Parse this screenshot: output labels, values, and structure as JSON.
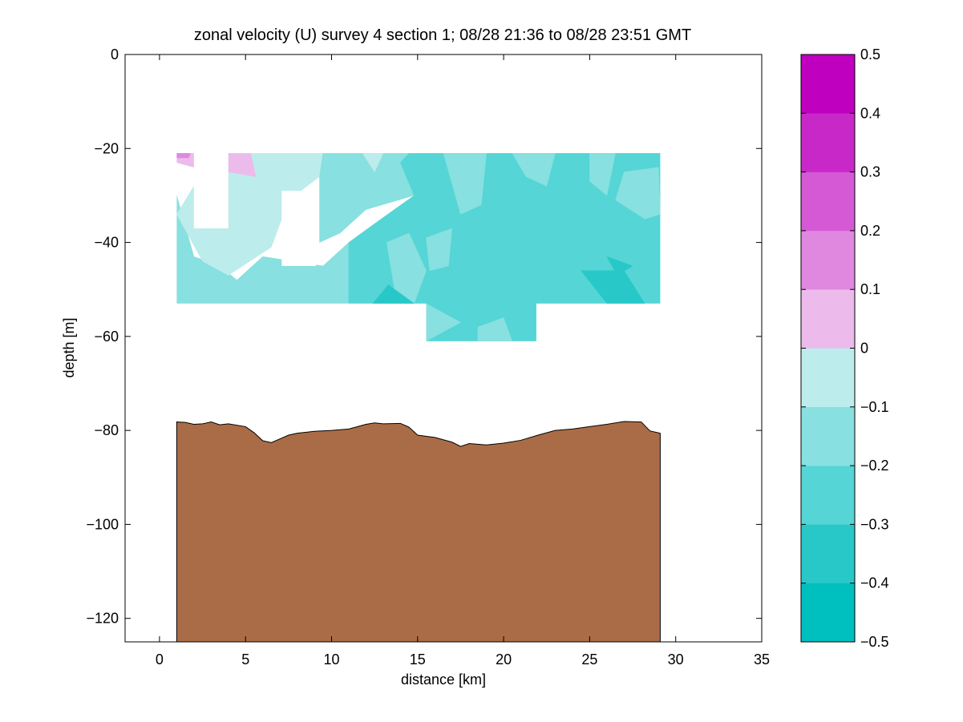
{
  "chart_data": {
    "type": "heatmap",
    "title": "zonal velocity (U) survey 4 section 1; 08/28 21:36 to 08/28 23:51 GMT",
    "xlabel": "distance [km]",
    "ylabel": "depth [m]",
    "xlim": [
      -2,
      35
    ],
    "ylim": [
      -125,
      0
    ],
    "xticks": [
      0,
      5,
      10,
      15,
      20,
      25,
      30,
      35
    ],
    "yticks": [
      0,
      -20,
      -40,
      -60,
      -80,
      -100,
      -120
    ],
    "grid": false,
    "colorbar": {
      "range": [
        -0.5,
        0.5
      ],
      "ticks": [
        0.5,
        0.4,
        0.3,
        0.2,
        0.1,
        0,
        -0.1,
        -0.2,
        -0.3,
        -0.4,
        -0.5
      ],
      "bins": [
        {
          "from": -0.5,
          "to": -0.4,
          "color": "#00bfbf"
        },
        {
          "from": -0.4,
          "to": -0.3,
          "color": "#28c8c8"
        },
        {
          "from": -0.3,
          "to": -0.2,
          "color": "#55d5d5"
        },
        {
          "from": -0.2,
          "to": -0.1,
          "color": "#88e0e0"
        },
        {
          "from": -0.1,
          "to": 0.0,
          "color": "#bdecec"
        },
        {
          "from": 0.0,
          "to": 0.1,
          "color": "#ecbbec"
        },
        {
          "from": 0.1,
          "to": 0.2,
          "color": "#e088e0"
        },
        {
          "from": 0.2,
          "to": 0.3,
          "color": "#d559d5"
        },
        {
          "from": 0.3,
          "to": 0.4,
          "color": "#c828c8"
        },
        {
          "from": 0.4,
          "to": 0.5,
          "color": "#bf00bf"
        }
      ]
    },
    "data_region": {
      "x_range": [
        1.0,
        29.1
      ],
      "depth_range": [
        -21,
        -53
      ],
      "deep_segment": {
        "x_range": [
          15.5,
          21.9
        ],
        "depth_bottom": -61
      }
    },
    "data_gaps": [
      {
        "x_range": [
          2.0,
          4.0
        ],
        "depth_range": [
          -21,
          -37
        ]
      },
      {
        "x_range": [
          7.1,
          9.1
        ],
        "depth_range": [
          -29,
          -45
        ]
      }
    ],
    "velocity_regions": [
      {
        "level": -0.15,
        "points": [
          [
            1.0,
            -30
          ],
          [
            1.0,
            -53
          ],
          [
            8.0,
            -53
          ],
          [
            11.0,
            -53
          ],
          [
            11.0,
            -40
          ],
          [
            9.5,
            -45
          ],
          [
            6.0,
            -43
          ],
          [
            4.5,
            -48
          ],
          [
            3.5,
            -45
          ],
          [
            2.0,
            -43
          ]
        ]
      },
      {
        "level": -0.05,
        "points": [
          [
            1.0,
            -34
          ],
          [
            2.0,
            -28
          ],
          [
            4.0,
            -21
          ],
          [
            9.5,
            -21
          ],
          [
            9.3,
            -26
          ],
          [
            7.5,
            -31
          ],
          [
            6.5,
            -41
          ],
          [
            4.0,
            -47
          ],
          [
            2.5,
            -44
          ],
          [
            1.3,
            -36
          ]
        ]
      },
      {
        "level": 0.05,
        "points": [
          [
            1.0,
            -21
          ],
          [
            2.0,
            -21
          ],
          [
            2.0,
            -24
          ],
          [
            1.0,
            -23
          ]
        ]
      },
      {
        "level": 0.05,
        "points": [
          [
            4.0,
            -21
          ],
          [
            5.3,
            -21
          ],
          [
            5.6,
            -26
          ],
          [
            4.0,
            -25
          ]
        ]
      },
      {
        "level": 0.15,
        "points": [
          [
            1.0,
            -21
          ],
          [
            1.8,
            -21
          ],
          [
            1.7,
            -22
          ],
          [
            1.0,
            -22
          ]
        ]
      },
      {
        "level": -0.15,
        "points": [
          [
            9.5,
            -21
          ],
          [
            14.5,
            -21
          ],
          [
            14.8,
            -30
          ],
          [
            12.0,
            -33
          ],
          [
            10.5,
            -38
          ],
          [
            9.3,
            -40
          ],
          [
            9.3,
            -26
          ]
        ]
      },
      {
        "level": -0.05,
        "points": [
          [
            11.8,
            -21
          ],
          [
            13.0,
            -21
          ],
          [
            12.5,
            -25
          ]
        ]
      },
      {
        "level": -0.25,
        "points": [
          [
            14.5,
            -21
          ],
          [
            29.1,
            -21
          ],
          [
            29.1,
            -53
          ],
          [
            21.9,
            -53
          ],
          [
            21.9,
            -61
          ],
          [
            15.5,
            -61
          ],
          [
            15.5,
            -53
          ],
          [
            11.0,
            -53
          ],
          [
            11.0,
            -40
          ],
          [
            12.5,
            -36
          ],
          [
            14.8,
            -30
          ],
          [
            14.0,
            -23
          ]
        ]
      },
      {
        "level": -0.15,
        "points": [
          [
            13.2,
            -40
          ],
          [
            14.5,
            -38
          ],
          [
            15.5,
            -46
          ],
          [
            14.8,
            -53
          ],
          [
            13.8,
            -53
          ]
        ]
      },
      {
        "level": -0.15,
        "points": [
          [
            15.5,
            -39
          ],
          [
            17.0,
            -37
          ],
          [
            16.8,
            -45
          ],
          [
            15.7,
            -46
          ]
        ]
      },
      {
        "level": -0.15,
        "points": [
          [
            16.5,
            -21
          ],
          [
            19.0,
            -21
          ],
          [
            18.7,
            -32
          ],
          [
            17.5,
            -34
          ]
        ]
      },
      {
        "level": -0.15,
        "points": [
          [
            20.5,
            -21
          ],
          [
            23.0,
            -21
          ],
          [
            22.5,
            -28
          ],
          [
            21.3,
            -26
          ]
        ]
      },
      {
        "level": -0.15,
        "points": [
          [
            25.0,
            -21
          ],
          [
            26.5,
            -21
          ],
          [
            26.0,
            -30
          ],
          [
            25.0,
            -27
          ]
        ]
      },
      {
        "level": -0.15,
        "points": [
          [
            27.0,
            -25
          ],
          [
            29.0,
            -24
          ],
          [
            29.1,
            -34
          ],
          [
            28.2,
            -35
          ],
          [
            26.5,
            -31
          ]
        ]
      },
      {
        "level": -0.15,
        "points": [
          [
            15.5,
            -53
          ],
          [
            17.5,
            -57
          ],
          [
            15.5,
            -61
          ]
        ]
      },
      {
        "level": -0.15,
        "points": [
          [
            18.5,
            -58
          ],
          [
            20.0,
            -56
          ],
          [
            20.5,
            -61
          ],
          [
            18.5,
            -61
          ]
        ]
      },
      {
        "level": -0.35,
        "points": [
          [
            12.4,
            -53
          ],
          [
            14.8,
            -53
          ],
          [
            13.3,
            -49
          ]
        ]
      },
      {
        "level": -0.35,
        "points": [
          [
            24.5,
            -46
          ],
          [
            27.0,
            -46
          ],
          [
            28.2,
            -53
          ],
          [
            26.0,
            -53
          ]
        ]
      },
      {
        "level": -0.35,
        "points": [
          [
            26.0,
            -43
          ],
          [
            27.5,
            -45
          ],
          [
            26.6,
            -47
          ]
        ]
      }
    ],
    "bottom_profile": {
      "color": "#aa6c46",
      "x": [
        1.0,
        1.5,
        2.0,
        2.5,
        3.0,
        3.5,
        4.0,
        5.0,
        5.5,
        6.0,
        6.5,
        7.0,
        7.5,
        8.0,
        9.0,
        10.0,
        11.0,
        12.0,
        12.5,
        13.0,
        14.0,
        14.5,
        15.0,
        16.0,
        17.0,
        17.5,
        18.0,
        19.0,
        20.0,
        21.0,
        22.0,
        23.0,
        24.0,
        25.0,
        26.0,
        27.0,
        28.0,
        28.5,
        29.1
      ],
      "depth": [
        -78.2,
        -78.3,
        -78.7,
        -78.6,
        -78.2,
        -78.8,
        -78.6,
        -79.2,
        -80.5,
        -82.2,
        -82.6,
        -81.8,
        -81.0,
        -80.6,
        -80.2,
        -80.0,
        -79.7,
        -78.7,
        -78.4,
        -78.6,
        -78.5,
        -79.3,
        -81.0,
        -81.5,
        -82.5,
        -83.4,
        -82.8,
        -83.1,
        -82.7,
        -82.1,
        -81.0,
        -80.0,
        -79.7,
        -79.2,
        -78.7,
        -78.1,
        -78.2,
        -80.1,
        -80.6
      ]
    }
  }
}
